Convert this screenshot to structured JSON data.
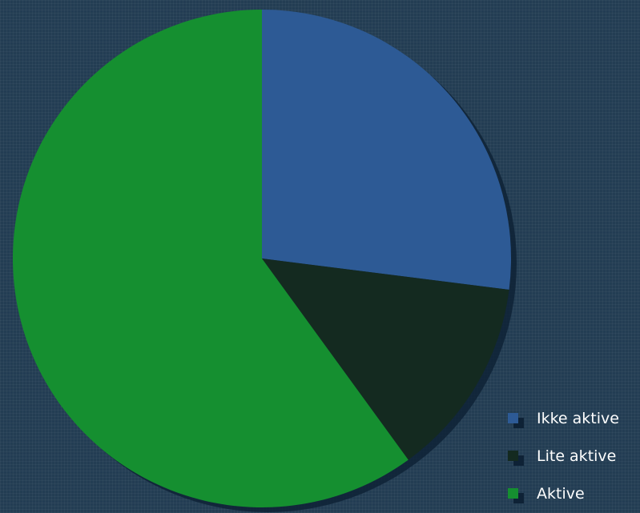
{
  "chart_data": {
    "type": "pie",
    "title": "",
    "categories": [
      "Ikke aktive",
      "Lite aktive",
      "Aktive"
    ],
    "values": [
      27,
      13,
      60
    ],
    "colors": [
      "#2d5a95",
      "#142a20",
      "#158f30"
    ],
    "shadow_color": "#0e2236",
    "start_angle_deg": 0,
    "direction": "clockwise",
    "legend": {
      "position": "bottom-right"
    }
  }
}
